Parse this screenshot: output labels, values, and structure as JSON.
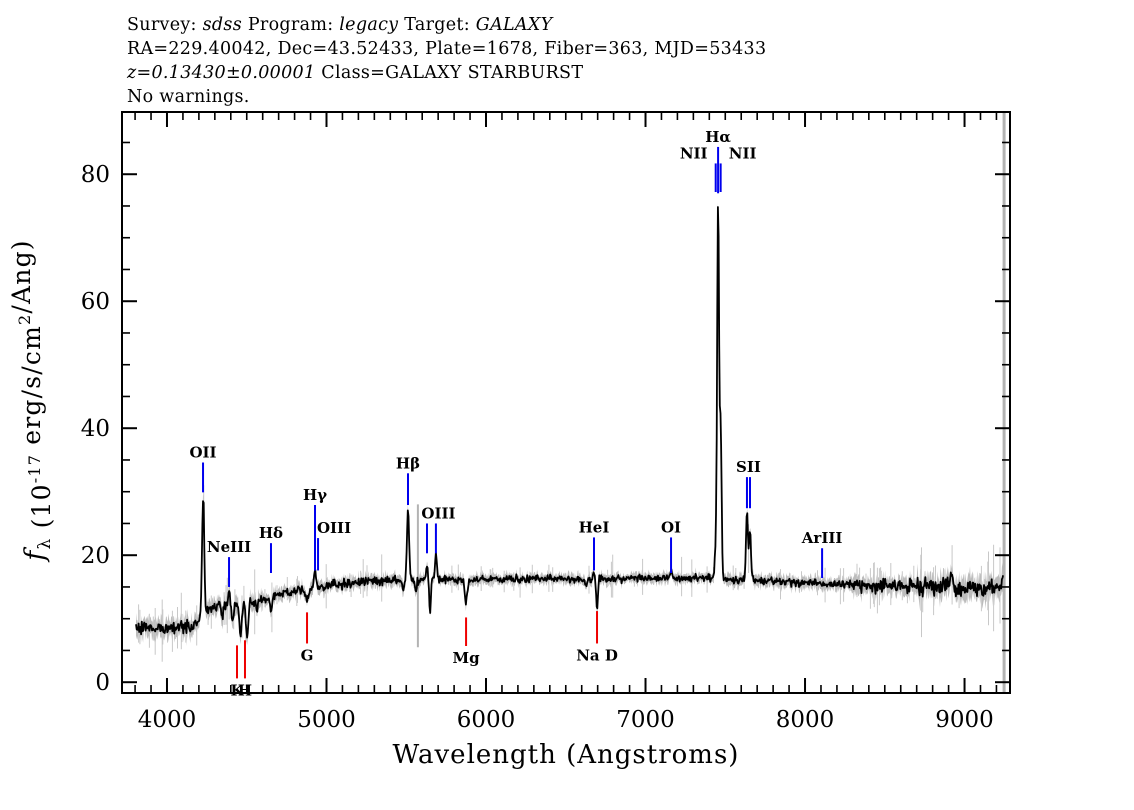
{
  "header": {
    "lines": [
      {
        "name": "survey-line",
        "segments": [
          {
            "t": "Survey: "
          },
          {
            "t": "sdss",
            "italic": true
          },
          {
            "t": "  Program: "
          },
          {
            "t": "legacy",
            "italic": true
          },
          {
            "t": "  Target: "
          },
          {
            "t": "GALAXY",
            "italic": true
          }
        ]
      },
      {
        "name": "coords-line",
        "segments": [
          {
            "t": "RA=229.40042,  Dec=43.52433,  Plate=1678,  Fiber=363,  MJD=53433"
          }
        ]
      },
      {
        "name": "class-line",
        "segments": [
          {
            "t": "z=0.13430±0.00001",
            "italic": true
          },
          {
            "t": "  Class=GALAXY  STARBURST"
          }
        ]
      },
      {
        "name": "warnings-line",
        "segments": [
          {
            "t": "No warnings."
          }
        ]
      }
    ]
  },
  "chart_data": {
    "type": "line",
    "title": "",
    "xlabel": "Wavelength (Angstroms)",
    "ylabel_parts": [
      {
        "t": "f",
        "style": "italic"
      },
      {
        "t": "λ",
        "style": "sub"
      },
      {
        "t": " (10",
        "style": ""
      },
      {
        "t": "-17",
        "style": "sup"
      },
      {
        "t": " erg/s/cm",
        "style": ""
      },
      {
        "t": "2",
        "style": "sup"
      },
      {
        "t": "/Ang)",
        "style": ""
      }
    ],
    "xlim": [
      3718,
      9285
    ],
    "ylim": [
      -1.7,
      89.8
    ],
    "x_major_ticks": [
      4000,
      5000,
      6000,
      7000,
      8000,
      9000
    ],
    "x_minor_step": 100,
    "y_major_ticks": [
      0,
      20,
      40,
      60,
      80
    ],
    "y_minor_step": 5,
    "grid": false,
    "colors": {
      "spectrum": "#000000",
      "error_band": "#bcbcbc",
      "error_hair": "#c8c8c8",
      "sky_line": "#b3b3b3",
      "blue": "#0000ee",
      "red": "#ee0000"
    },
    "spectrum_range": [
      3806,
      9245
    ],
    "continuum": [
      [
        3806,
        8.8
      ],
      [
        3900,
        8.6
      ],
      [
        4000,
        8.6
      ],
      [
        4080,
        8.8
      ],
      [
        4150,
        8.9
      ],
      [
        4190,
        9.3
      ],
      [
        4235,
        10.3
      ],
      [
        4270,
        11.6
      ],
      [
        4320,
        11.9
      ],
      [
        4380,
        12.1
      ],
      [
        4440,
        12.2
      ],
      [
        4480,
        12.0
      ],
      [
        4530,
        12.6
      ],
      [
        4620,
        13.2
      ],
      [
        4720,
        13.9
      ],
      [
        4820,
        14.4
      ],
      [
        4920,
        14.8
      ],
      [
        5050,
        15.3
      ],
      [
        5250,
        15.8
      ],
      [
        5450,
        16.0
      ],
      [
        5650,
        16.2
      ],
      [
        5900,
        16.1
      ],
      [
        6150,
        16.3
      ],
      [
        6400,
        16.3
      ],
      [
        6650,
        16.2
      ],
      [
        6900,
        16.3
      ],
      [
        7150,
        16.4
      ],
      [
        7400,
        16.4
      ],
      [
        7600,
        16.1
      ],
      [
        7800,
        15.8
      ],
      [
        8000,
        15.6
      ],
      [
        8250,
        15.4
      ],
      [
        8500,
        15.1
      ],
      [
        8750,
        15.1
      ],
      [
        9000,
        14.9
      ],
      [
        9150,
        14.8
      ],
      [
        9235,
        15.3
      ],
      [
        9245,
        16.9
      ]
    ],
    "emission_lines": [
      {
        "name": "OII",
        "lambda": 4227,
        "amp": 19.5,
        "sigma": 7
      },
      {
        "name": "NeIII",
        "lambda": 4389,
        "amp": 2.0,
        "sigma": 7
      },
      {
        "name": "Hgamma",
        "lambda": 4928,
        "amp": 3.0,
        "sigma": 6
      },
      {
        "name": "Hbeta",
        "lambda": 5511,
        "amp": 11.5,
        "sigma": 6.5
      },
      {
        "name": "OIII-4959",
        "lambda": 5630,
        "amp": 2.2,
        "sigma": 6
      },
      {
        "name": "OIII-5007",
        "lambda": 5686,
        "amp": 4.0,
        "sigma": 6
      },
      {
        "name": "HeI",
        "lambda": 6677,
        "amp": 1.2,
        "sigma": 6
      },
      {
        "name": "OI",
        "lambda": 7160,
        "amp": 1.4,
        "sigma": 6
      },
      {
        "name": "NII-6548",
        "lambda": 7440,
        "amp": 4.5,
        "sigma": 6
      },
      {
        "name": "Halpha",
        "lambda": 7455,
        "amp": 58.5,
        "sigma": 6
      },
      {
        "name": "NII-6583",
        "lambda": 7471,
        "amp": 23.5,
        "sigma": 6
      },
      {
        "name": "SII-6716",
        "lambda": 7636,
        "amp": 10.8,
        "sigma": 6
      },
      {
        "name": "SII-6731",
        "lambda": 7655,
        "amp": 8.0,
        "sigma": 6
      },
      {
        "name": "red-residual-1",
        "lambda": 8890,
        "amp": 1.3,
        "sigma": 7
      },
      {
        "name": "red-residual-2",
        "lambda": 8920,
        "amp": 1.6,
        "sigma": 7
      }
    ],
    "absorption_lines": [
      {
        "name": "H9",
        "lambda": 4345,
        "depth": 1.8,
        "sigma": 7
      },
      {
        "name": "H8",
        "lambda": 4411,
        "depth": 2.2,
        "sigma": 7
      },
      {
        "name": "CaK",
        "lambda": 4461,
        "depth": 4.6,
        "sigma": 7
      },
      {
        "name": "CaH",
        "lambda": 4503,
        "depth": 5.2,
        "sigma": 7
      },
      {
        "name": "blend-4560",
        "lambda": 4560,
        "depth": 1.5,
        "sigma": 6
      },
      {
        "name": "Hdelta",
        "lambda": 4652,
        "depth": 2.3,
        "sigma": 7
      },
      {
        "name": "Gband",
        "lambda": 4878,
        "depth": 1.7,
        "sigma": 9
      },
      {
        "name": "dip-5480",
        "lambda": 5480,
        "depth": 1.6,
        "sigma": 5
      },
      {
        "name": "dip-5560",
        "lambda": 5560,
        "depth": 2.2,
        "sigma": 5
      },
      {
        "name": "dip-5649",
        "lambda": 5649,
        "depth": 5.0,
        "sigma": 5
      },
      {
        "name": "MgB",
        "lambda": 5875,
        "depth": 3.3,
        "sigma": 8
      },
      {
        "name": "dip-6630",
        "lambda": 6630,
        "depth": 1.2,
        "sigma": 5
      },
      {
        "name": "NaD",
        "lambda": 6696,
        "depth": 4.8,
        "sigma": 5
      }
    ],
    "noise_segments": [
      {
        "from": 3806,
        "to": 4160,
        "sigma": 0.5,
        "err": 1.5
      },
      {
        "from": 4160,
        "to": 4600,
        "sigma": 0.45,
        "err": 1.3
      },
      {
        "from": 4600,
        "to": 5600,
        "sigma": 0.35,
        "err": 1.0
      },
      {
        "from": 5600,
        "to": 7500,
        "sigma": 0.28,
        "err": 0.8
      },
      {
        "from": 7500,
        "to": 8300,
        "sigma": 0.33,
        "err": 0.95
      },
      {
        "from": 8300,
        "to": 8700,
        "sigma": 0.5,
        "err": 1.3
      },
      {
        "from": 8700,
        "to": 9245,
        "sigma": 0.65,
        "err": 1.8
      }
    ],
    "sky_spikes": [
      {
        "name": "sky-5577",
        "lambda": 5573,
        "v1": 5.5,
        "v2": 28,
        "w": 2
      },
      {
        "name": "sky-red-edge",
        "lambda": 9248,
        "v1": -1.7,
        "v2": 89.8,
        "w": 3
      }
    ],
    "line_markers": [
      {
        "label": "OII",
        "color": "blue",
        "ticks": [
          4226
        ],
        "v1": 34.6,
        "v2": 29.9,
        "side": "above",
        "dx": 0
      },
      {
        "label": "NeIII",
        "color": "blue",
        "ticks": [
          4389
        ],
        "v1": 19.7,
        "v2": 15.0,
        "side": "above",
        "dx": 0
      },
      {
        "label": "Hδ",
        "color": "blue",
        "ticks": [
          4652
        ],
        "v1": 21.9,
        "v2": 17.2,
        "side": "above",
        "dx": 0
      },
      {
        "label": "Hγ",
        "color": "blue",
        "ticks": [
          4928
        ],
        "v1": 27.9,
        "v2": 17.6,
        "side": "above",
        "dx": 0
      },
      {
        "label": "OIII",
        "color": "blue",
        "ticks": [
          4947
        ],
        "v1": 22.7,
        "v2": 17.6,
        "side": "above",
        "dx": 16
      },
      {
        "label": "Hβ",
        "color": "blue",
        "ticks": [
          5511
        ],
        "v1": 32.9,
        "v2": 27.9,
        "side": "above",
        "dx": 0
      },
      {
        "label": "OIII",
        "color": "blue",
        "ticks": [
          5630,
          5686
        ],
        "v1": 25.0,
        "v2": 20.3,
        "side": "above",
        "dx": 7
      },
      {
        "label": "HeI",
        "color": "blue",
        "ticks": [
          6677
        ],
        "v1": 22.8,
        "v2": 17.6,
        "side": "above",
        "dx": 0
      },
      {
        "label": "OI",
        "color": "blue",
        "ticks": [
          7160
        ],
        "v1": 22.8,
        "v2": 17.2,
        "side": "above",
        "dx": 0
      },
      {
        "label": "NII",
        "color": "blue",
        "ticks": [
          7440
        ],
        "v1": 81.7,
        "v2": 77.2,
        "side": "above",
        "dx": -22
      },
      {
        "label": "Hα",
        "color": "blue",
        "ticks": [
          7455
        ],
        "v1": 84.3,
        "v2": 77.0,
        "side": "above",
        "dx": 0
      },
      {
        "label": "NII",
        "color": "blue",
        "ticks": [
          7471
        ],
        "v1": 81.7,
        "v2": 77.2,
        "side": "above",
        "dx": 22
      },
      {
        "label": "SII",
        "color": "blue",
        "ticks": [
          7636,
          7655
        ],
        "v1": 32.3,
        "v2": 27.4,
        "side": "above",
        "dx": 0
      },
      {
        "label": "ArIII",
        "color": "blue",
        "ticks": [
          8107
        ],
        "v1": 21.1,
        "v2": 16.4,
        "side": "above",
        "dx": 0
      },
      {
        "label": "K",
        "color": "red",
        "ticks": [
          4439
        ],
        "v1": 5.8,
        "v2": 0.6,
        "side": "below",
        "dx": 0
      },
      {
        "label": "H",
        "color": "red",
        "ticks": [
          4489
        ],
        "v1": 6.6,
        "v2": 0.6,
        "side": "below",
        "dx": 0
      },
      {
        "label": "G",
        "color": "red",
        "ticks": [
          4878
        ],
        "v1": 11.0,
        "v2": 6.1,
        "side": "below",
        "dx": 0
      },
      {
        "label": "Mg",
        "color": "red",
        "ticks": [
          5875
        ],
        "v1": 10.2,
        "v2": 5.7,
        "side": "below",
        "dx": 0
      },
      {
        "label": "Na D",
        "color": "red",
        "ticks": [
          6696
        ],
        "v1": 11.2,
        "v2": 6.1,
        "side": "below",
        "dx": 0
      }
    ]
  }
}
